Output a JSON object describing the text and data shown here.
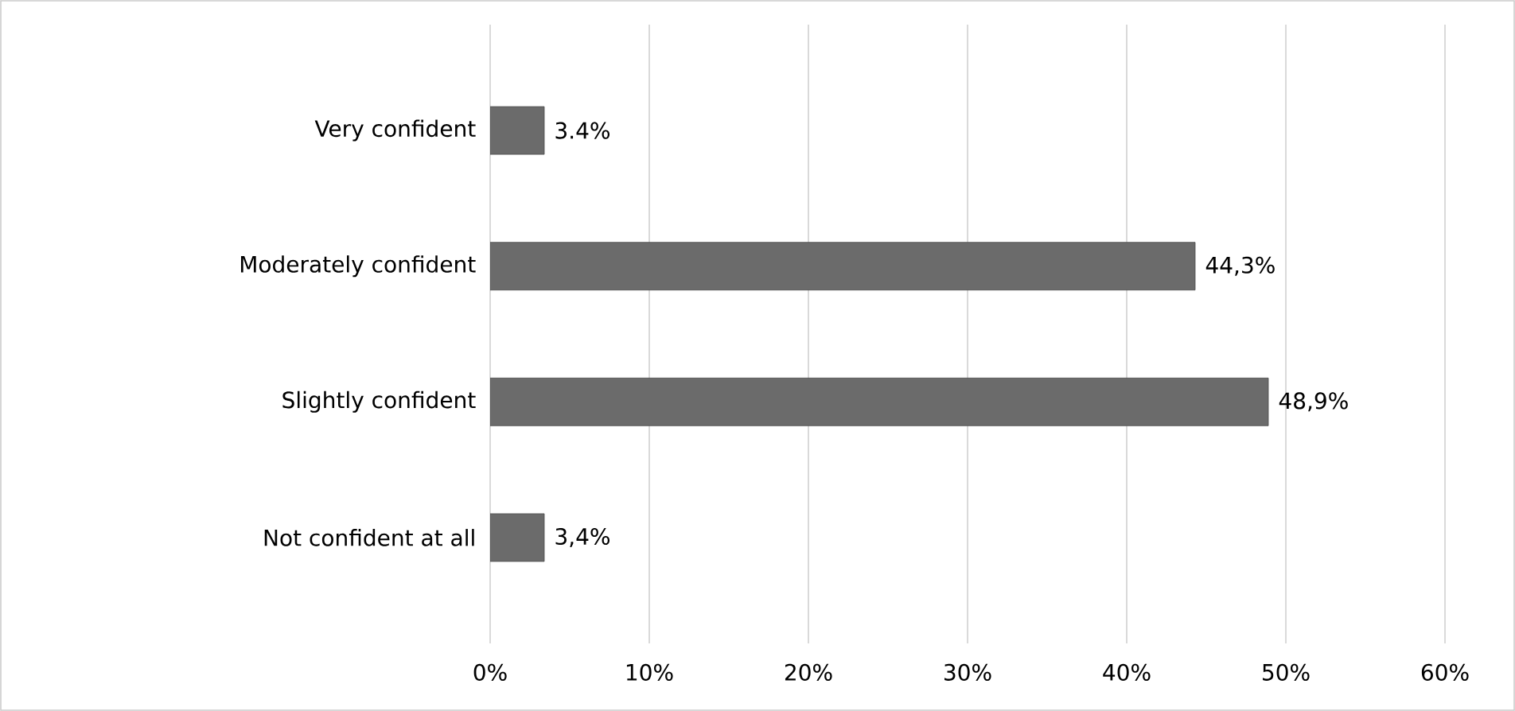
{
  "chart_data": {
    "type": "bar",
    "orientation": "horizontal",
    "categories": [
      "Very confident",
      "Moderately confident",
      "Slightly confident",
      "Not confident at all"
    ],
    "values": [
      3.4,
      44.3,
      48.9,
      3.4
    ],
    "value_labels": [
      "3.4%",
      "44,3%",
      "48,9%",
      "3,4%"
    ],
    "color": "#6b6b6b",
    "xlim": [
      0,
      60
    ],
    "xticks": [
      {
        "value": 0,
        "label": "0%"
      },
      {
        "value": 10,
        "label": "10%"
      },
      {
        "value": 20,
        "label": "20%"
      },
      {
        "value": 30,
        "label": "30%"
      },
      {
        "value": 40,
        "label": "40%"
      },
      {
        "value": 50,
        "label": "50%"
      },
      {
        "value": 60,
        "label": "60%"
      }
    ],
    "grid": "x"
  }
}
